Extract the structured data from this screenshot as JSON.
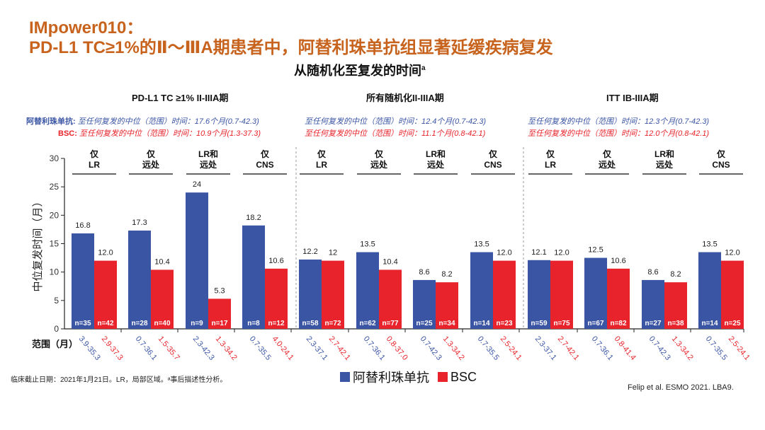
{
  "header": {
    "title_line1": "IMpower010：",
    "title_line2": "PD-L1 TC≥1%的Ⅱ～ⅢA期患者中，阿替利珠单抗组显著延缓疾病复发",
    "subtitle": "从随机化至复发的时间",
    "subtitle_sup": "a"
  },
  "colors": {
    "title": "#C8631E",
    "atezolizumab": "#3A55A4",
    "bsc": "#E8232B"
  },
  "panels": [
    {
      "title": "PD-L1 TC ≥1% II-IIIA期",
      "atezo_label": "阿替利珠单抗:",
      "bsc_label": "BSC:",
      "atezo_median": "至任何复发的中位（范围）时间：17.6个月(0.7-42.3)",
      "bsc_median": "至任何复发的中位（范围）时间：10.9个月(1.3-37.3)"
    },
    {
      "title": "所有随机化II-IIIA期",
      "atezo_median": "至任何复发的中位（范围）时间：12.4个月(0.7-42.3)",
      "bsc_median": "至任何复发的中位（范围）时间：11.1个月(0.8-42.1)"
    },
    {
      "title": "ITT IB-IIIA期",
      "atezo_median": "至任何复发的中位（范围）时间：12.3个月(0.7-42.3)",
      "bsc_median": "至任何复发的中位（范围）时间：12.0个月(0.8-42.1)"
    }
  ],
  "chart_data": {
    "type": "bar",
    "ylabel": "中位复发时间（月）",
    "xlabel": "范围（月）",
    "ylim": [
      0,
      30
    ],
    "yticks": [
      0,
      5,
      10,
      15,
      20,
      25,
      30
    ],
    "grid": false,
    "legend": {
      "position": "bottom",
      "entries": [
        "阿替利珠单抗",
        "BSC"
      ]
    },
    "series": [
      {
        "name": "阿替利珠单抗",
        "values": [
          16.8,
          17.3,
          24,
          18.2,
          12.2,
          13.5,
          8.6,
          13.5,
          12.1,
          12.5,
          8.6,
          13.5
        ],
        "labels": [
          "16.8",
          "17.3",
          "24",
          "18.2",
          "12.2",
          "13.5",
          "8.6",
          "13.5",
          "12.1",
          "12.5",
          "8.6",
          "13.5"
        ],
        "n": [
          "n=35",
          "n=28",
          "n=9",
          "n=8",
          "n=58",
          "n=62",
          "n=25",
          "n=14",
          "n=59",
          "n=67",
          "n=27",
          "n=14"
        ],
        "ranges": [
          "3.9-35.3",
          "0.7-36.1",
          "2.3-42.3",
          "0.7-35.5",
          "2.3-37.1",
          "0.7-36.1",
          "0.7-42.3",
          "0.7-35.5",
          "2.3-37.1",
          "0.7-36.1",
          "0.7-42.3",
          "0.7-35.5"
        ]
      },
      {
        "name": "BSC",
        "values": [
          12.0,
          10.4,
          5.3,
          10.6,
          12,
          10.4,
          8.2,
          12.0,
          12.0,
          10.6,
          8.2,
          12.0
        ],
        "labels": [
          "12.0",
          "10.4",
          "5.3",
          "10.6",
          "12",
          "10.4",
          "8.2",
          "12.0",
          "12.0",
          "10.6",
          "8.2",
          "12.0"
        ],
        "n": [
          "n=42",
          "n=40",
          "n=17",
          "n=12",
          "n=72",
          "n=77",
          "n=34",
          "n=23",
          "n=75",
          "n=82",
          "n=38",
          "n=25"
        ],
        "ranges": [
          "2.9-37.3",
          "1.5-35.7",
          "1.3-34.2",
          "4.0-24.1",
          "2.7-42.1",
          "0.8-37.0",
          "1.3-34.2",
          "2.5-24.1",
          "2.7-42.1",
          "0.8-41.4",
          "1.3-34.2",
          "2.5-24.1"
        ]
      }
    ],
    "categories": [
      [
        "仅",
        "LR"
      ],
      [
        "仅",
        "远处"
      ],
      [
        "LR和",
        "远处"
      ],
      [
        "仅",
        "CNS"
      ],
      [
        "仅",
        "LR"
      ],
      [
        "仅",
        "远处"
      ],
      [
        "LR和",
        "远处"
      ],
      [
        "仅",
        "CNS"
      ],
      [
        "仅",
        "LR"
      ],
      [
        "仅",
        "远处"
      ],
      [
        "LR和",
        "远处"
      ],
      [
        "仅",
        "CNS"
      ]
    ]
  },
  "footer": {
    "footnote": "临床截止日期：2021年1月21日。LR，局部区域。ᵃ事后描述性分析。",
    "citation": "Felip et al. ESMO 2021. LBA9."
  }
}
